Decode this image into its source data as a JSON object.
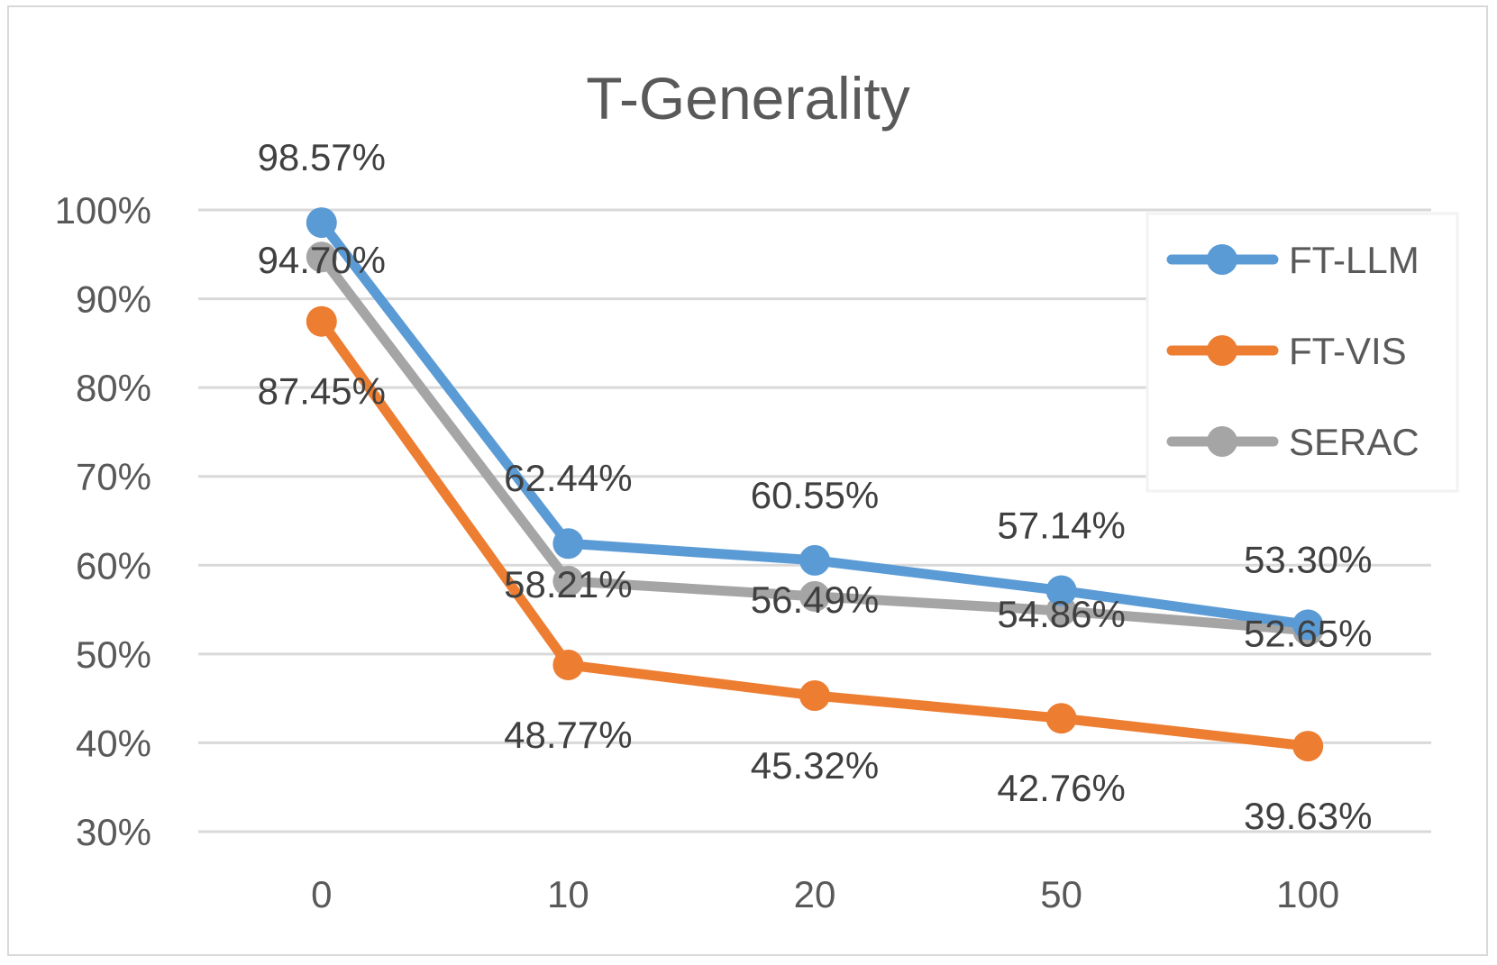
{
  "chart_data": {
    "type": "line",
    "title": "T-Generality",
    "categories": [
      "0",
      "10",
      "20",
      "50",
      "100"
    ],
    "ylim": [
      30,
      100
    ],
    "yticks": [
      30,
      40,
      50,
      60,
      70,
      80,
      90,
      100
    ],
    "ytick_labels": [
      "30%",
      "40%",
      "50%",
      "60%",
      "70%",
      "80%",
      "90%",
      "100%"
    ],
    "grid": true,
    "legend_position": "top-right",
    "series": [
      {
        "name": "FT-LLM",
        "color": "#5b9bd5",
        "values": [
          98.57,
          62.44,
          60.55,
          57.14,
          53.3
        ],
        "labels": [
          "98.57%",
          "62.44%",
          "60.55%",
          "57.14%",
          "53.30%"
        ],
        "label_position": "above"
      },
      {
        "name": "FT-VIS",
        "color": "#ed7d31",
        "values": [
          87.45,
          48.77,
          45.32,
          42.76,
          39.63
        ],
        "labels": [
          "87.45%",
          "48.77%",
          "45.32%",
          "42.76%",
          "39.63%"
        ],
        "label_position": "below"
      },
      {
        "name": "SERAC",
        "color": "#a5a5a5",
        "values": [
          94.7,
          58.21,
          56.49,
          54.86,
          52.65
        ],
        "labels": [
          "94.70%",
          "58.21%",
          "56.49%",
          "54.86%",
          "52.65%"
        ],
        "label_position": "right-offset"
      }
    ]
  }
}
